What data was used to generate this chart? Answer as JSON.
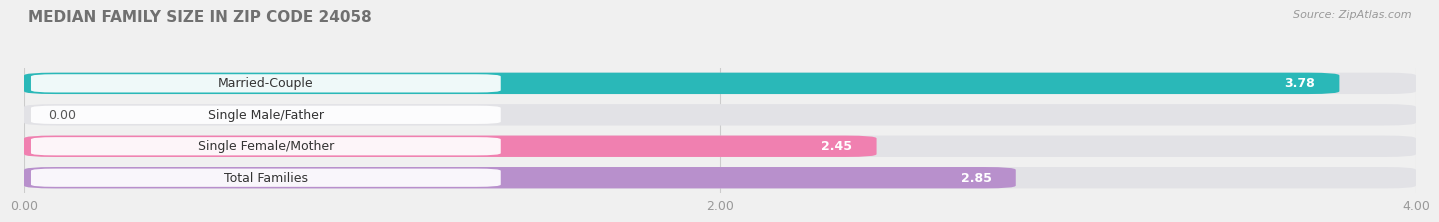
{
  "title": "MEDIAN FAMILY SIZE IN ZIP CODE 24058",
  "source": "Source: ZipAtlas.com",
  "categories": [
    "Married-Couple",
    "Single Male/Father",
    "Single Female/Mother",
    "Total Families"
  ],
  "values": [
    3.78,
    0.0,
    2.45,
    2.85
  ],
  "bar_colors": [
    "#2ab8b8",
    "#a8c0e8",
    "#f080b0",
    "#b890cc"
  ],
  "xlim": [
    0,
    4.0
  ],
  "xticks": [
    0.0,
    2.0,
    4.0
  ],
  "xticklabels": [
    "0.00",
    "2.00",
    "4.00"
  ],
  "background_color": "#f0f0f0",
  "bar_background_color": "#e2e2e6",
  "title_fontsize": 11,
  "source_fontsize": 8,
  "bar_height": 0.68,
  "bar_gap": 0.32
}
